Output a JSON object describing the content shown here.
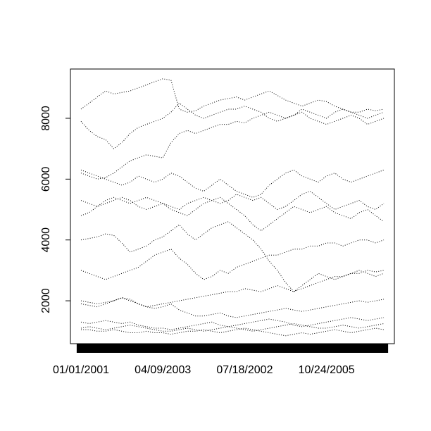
{
  "chart_data": {
    "type": "line",
    "color": "#000000",
    "categories": [
      "01/01/2001",
      null,
      null,
      null,
      null,
      null,
      null,
      null,
      null,
      null,
      "04/09/2003",
      null,
      null,
      null,
      null,
      null,
      null,
      null,
      null,
      null,
      "07/18/2002",
      null,
      null,
      null,
      null,
      null,
      null,
      null,
      null,
      null,
      "10/24/2005",
      null,
      null,
      null,
      null,
      null,
      null,
      null
    ],
    "ylim": [
      590,
      9620
    ],
    "yticks": [
      2000,
      4000,
      6000,
      8000
    ],
    "series": [
      {
        "values": [
          8300,
          8500,
          8700,
          8900,
          8800,
          8850,
          8900,
          9000,
          9100,
          9200,
          9300,
          9250,
          8300,
          8200,
          8250,
          8400,
          8500,
          8600,
          8650,
          8700,
          8600,
          8700,
          8800,
          8900,
          8750,
          8600,
          8500,
          8400,
          8500,
          8600,
          8550,
          8400,
          8300,
          8200,
          8200,
          8300,
          8250,
          8300
        ]
      },
      {
        "values": [
          7900,
          7600,
          7400,
          7300,
          7000,
          7200,
          7500,
          7700,
          7800,
          7900,
          8000,
          8200,
          8500,
          8300,
          8100,
          8000,
          8100,
          8200,
          8300,
          8300,
          8400,
          8300,
          8200,
          8000,
          7900,
          8000,
          8100,
          8200,
          8000,
          7900,
          7800,
          7900,
          8000,
          8100,
          8000,
          7800,
          7900,
          8000
        ]
      },
      {
        "values": [
          6200,
          6100,
          6000,
          6050,
          6200,
          6400,
          6600,
          6700,
          6800,
          6750,
          6700,
          7200,
          7500,
          7600,
          7500,
          7600,
          7700,
          7800,
          7800,
          7900,
          7850,
          8000,
          8100,
          8200,
          8100,
          8000,
          8100,
          8300,
          8200,
          8100,
          8000,
          8200,
          8300,
          8200,
          8100,
          8000,
          8100,
          8200
        ]
      },
      {
        "values": [
          6300,
          6200,
          6100,
          6000,
          5900,
          5800,
          5900,
          6100,
          6000,
          5900,
          6000,
          6200,
          6100,
          5900,
          5700,
          5600,
          5800,
          6000,
          5800,
          5600,
          5500,
          5400,
          5500,
          5800,
          6000,
          6200,
          6300,
          6100,
          6000,
          5900,
          6100,
          6200,
          6000,
          5900,
          6000,
          6100,
          6200,
          6300
        ]
      },
      {
        "values": [
          5300,
          5200,
          5100,
          5300,
          5400,
          5300,
          5200,
          5300,
          5400,
          5300,
          5200,
          5100,
          5000,
          5200,
          5300,
          5400,
          5300,
          5200,
          5300,
          5500,
          5400,
          5300,
          5400,
          5200,
          5000,
          5100,
          5300,
          5500,
          5600,
          5400,
          5200,
          5000,
          5100,
          5200,
          5300,
          5100,
          5000,
          5200
        ]
      },
      {
        "values": [
          4800,
          4900,
          5100,
          5200,
          5300,
          5400,
          5300,
          5100,
          5000,
          5100,
          5200,
          5000,
          4900,
          4800,
          5000,
          5200,
          5300,
          5400,
          5200,
          5000,
          4800,
          4500,
          4300,
          4500,
          4700,
          4900,
          5100,
          5000,
          4900,
          5000,
          5100,
          4900,
          4800,
          4700,
          4900,
          5000,
          4800,
          4600
        ]
      },
      {
        "values": [
          4000,
          4050,
          4100,
          4200,
          4150,
          3900,
          3600,
          3700,
          3800,
          4000,
          4100,
          4300,
          4500,
          4200,
          4000,
          4200,
          4400,
          4500,
          4600,
          4400,
          4200,
          4000,
          3700,
          3300,
          3000,
          2600,
          2300,
          2500,
          2700,
          2900,
          2800,
          2700,
          2800,
          2900,
          3000,
          2900,
          2800,
          2900
        ]
      },
      {
        "values": [
          3000,
          2900,
          2800,
          2700,
          2800,
          2900,
          3000,
          3100,
          3300,
          3500,
          3600,
          3700,
          3400,
          3200,
          2900,
          2700,
          2800,
          3000,
          2900,
          3100,
          3200,
          3300,
          3400,
          3500,
          3500,
          3600,
          3700,
          3700,
          3800,
          3800,
          3900,
          3900,
          3800,
          3900,
          4000,
          4000,
          3900,
          4000
        ]
      },
      {
        "values": [
          2000,
          1950,
          1900,
          1950,
          2000,
          2100,
          2050,
          1900,
          1800,
          1850,
          1900,
          1950,
          2000,
          2050,
          2100,
          2150,
          2200,
          2250,
          2300,
          2300,
          2400,
          2350,
          2300,
          2400,
          2500,
          2400,
          2300,
          2400,
          2500,
          2600,
          2700,
          2800,
          2800,
          2900,
          2900,
          3000,
          2950,
          3000
        ]
      },
      {
        "values": [
          1900,
          1850,
          1800,
          1900,
          2000,
          2100,
          2000,
          1900,
          1800,
          1750,
          1800,
          1900,
          1700,
          1600,
          1500,
          1500,
          1550,
          1600,
          1500,
          1450,
          1500,
          1550,
          1600,
          1650,
          1700,
          1750,
          1700,
          1650,
          1700,
          1750,
          1800,
          1850,
          1900,
          1950,
          2000,
          1950,
          2000,
          2050
        ]
      },
      {
        "values": [
          1300,
          1250,
          1300,
          1350,
          1300,
          1250,
          1300,
          1200,
          1150,
          1100,
          1100,
          1050,
          1100,
          1150,
          1200,
          1250,
          1300,
          1200,
          1150,
          1200,
          1250,
          1300,
          1350,
          1400,
          1350,
          1300,
          1200,
          1150,
          1200,
          1250,
          1300,
          1350,
          1400,
          1450,
          1400,
          1350,
          1400,
          1450
        ]
      },
      {
        "values": [
          1100,
          1150,
          1100,
          1050,
          1100,
          1150,
          1200,
          1150,
          1100,
          1050,
          1000,
          1000,
          1050,
          1100,
          1050,
          1000,
          1050,
          1100,
          1150,
          1100,
          1050,
          1000,
          1050,
          1100,
          1150,
          1200,
          1250,
          1200,
          1150,
          1100,
          1100,
          1150,
          1200,
          1150,
          1100,
          1150,
          1200,
          1250
        ]
      },
      {
        "values": [
          1050,
          1050,
          1000,
          1000,
          1050,
          1000,
          950,
          950,
          1000,
          950,
          950,
          900,
          950,
          1000,
          1000,
          1050,
          1000,
          950,
          1000,
          1050,
          1100,
          1050,
          1000,
          950,
          900,
          850,
          900,
          950,
          900,
          950,
          1000,
          1050,
          1000,
          950,
          1000,
          1050,
          1100,
          1050
        ]
      }
    ]
  }
}
